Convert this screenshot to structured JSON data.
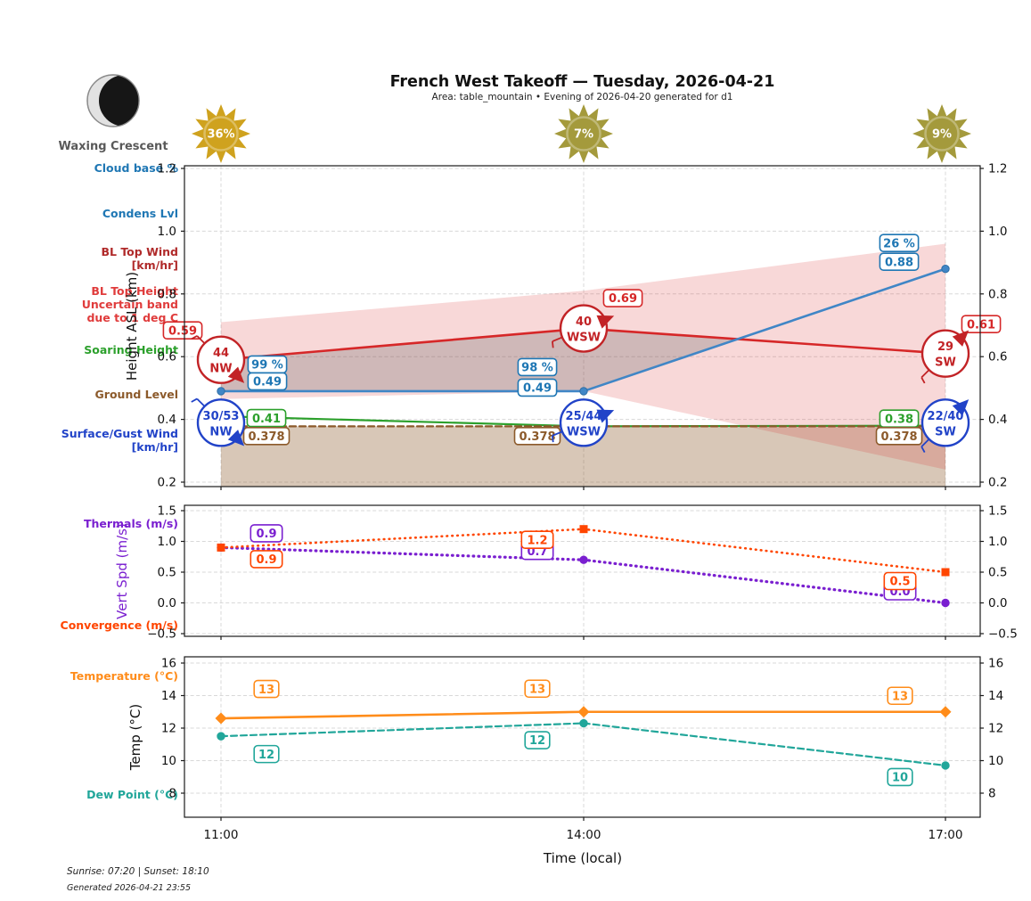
{
  "header": {
    "title": "French West Takeoff — Tuesday, 2026-04-21",
    "subtitle": "Area: table_mountain • Evening of 2026-04-20 generated for d1"
  },
  "moon": {
    "label": "Waxing Crescent"
  },
  "suns": [
    {
      "time": "11:00",
      "percent": "36%",
      "color": "#cfa21e"
    },
    {
      "time": "14:00",
      "percent": "7%",
      "color": "#a49a3c"
    },
    {
      "time": "17:00",
      "percent": "9%",
      "color": "#a49a3c"
    }
  ],
  "left_labels": [
    {
      "text": "Cloud base %",
      "color": "#1f77b4"
    },
    {
      "text": "Condens Lvl",
      "color": "#1f77b4"
    },
    {
      "text": "BL Top Wind\n[km/hr]",
      "color": "#b02a2a"
    },
    {
      "text": "BL Top Height\nUncertain band\ndue to 1 deg C",
      "color": "#e03c3c"
    },
    {
      "text": "Soaring Height",
      "color": "#2ca02c"
    },
    {
      "text": "Ground Level",
      "color": "#8c5a2b"
    },
    {
      "text": "Surface/Gust Wind\n[km/hr]",
      "color": "#2143c8"
    },
    {
      "text": "Thermals (m/s)",
      "color": "#7a1fd0"
    },
    {
      "text": "Convergence (m/s)",
      "color": "#ff4500"
    },
    {
      "text": "Temperature (°C)",
      "color": "#ff8c1a"
    },
    {
      "text": "Dew Point (°C)",
      "color": "#21a69a"
    }
  ],
  "axes": {
    "x_label": "Time (local)",
    "x_ticks": [
      "11:00",
      "14:00",
      "17:00"
    ],
    "chart1_ylabel": "Height ASL (km)",
    "chart1_yticks": [
      {
        "v": 1.2,
        "t": "1.2"
      },
      {
        "v": 1.0,
        "t": "1.0"
      },
      {
        "v": 0.8,
        "t": "0.8"
      },
      {
        "v": 0.6,
        "t": "0.6"
      },
      {
        "v": 0.4,
        "t": "0.4"
      },
      {
        "v": 0.2,
        "t": "0.2"
      }
    ],
    "chart2_ylabel": "Vert Spd (m/s)",
    "chart2_ylabel_color": "#7a1fd0",
    "chart2_yticks": [
      {
        "v": 1.5,
        "t": "1.5"
      },
      {
        "v": 1.0,
        "t": "1.0"
      },
      {
        "v": 0.5,
        "t": "0.5"
      },
      {
        "v": 0.0,
        "t": "0.0"
      },
      {
        "v": -0.5,
        "t": "−0.5"
      }
    ],
    "chart3_ylabel": "Temp (°C)",
    "chart3_yticks": [
      {
        "v": 16,
        "t": "16"
      },
      {
        "v": 14,
        "t": "14"
      },
      {
        "v": 12,
        "t": "12"
      },
      {
        "v": 10,
        "t": "10"
      },
      {
        "v": 8,
        "t": "8"
      }
    ]
  },
  "footer": {
    "sun_times": "Sunrise: 07:20 | Sunset: 18:10",
    "generated": "Generated 2026-04-21 23:55"
  },
  "chart_data": [
    {
      "type": "line",
      "ylabel": "Height ASL (km)",
      "ylim": [
        0.2,
        1.2
      ],
      "x": [
        "11:00",
        "14:00",
        "17:00"
      ],
      "series": [
        {
          "name": "BL Top Height",
          "color": "#d62728",
          "style": "solid",
          "values": [
            0.59,
            0.69,
            0.61
          ],
          "labels": [
            "0.59",
            "0.69",
            "0.61"
          ]
        },
        {
          "name": "Condens Lvl",
          "color": "#4086c6",
          "style": "solid",
          "marker": "circle",
          "values": [
            0.49,
            0.49,
            0.88
          ],
          "labels": [
            "0.49",
            "0.49",
            "0.88"
          ]
        },
        {
          "name": "Cloud base %",
          "color": "#1f77b4",
          "labels": [
            "99 %",
            "98 %",
            "26 %"
          ]
        },
        {
          "name": "Soaring Height",
          "color": "#2ca02c",
          "style": "solid",
          "values": [
            0.41,
            0.378,
            0.38
          ],
          "labels": [
            "0.41",
            null,
            "0.38"
          ]
        },
        {
          "name": "Ground Level",
          "color": "#8c5a2b",
          "style": "dashed",
          "values": [
            0.378,
            0.378,
            0.378
          ],
          "labels": [
            "0.378",
            "0.378",
            "0.378"
          ]
        }
      ],
      "bands": [
        {
          "name": "BL Top Height uncertain band due to 1 deg C",
          "color": "#d62728",
          "opacity": 0.18,
          "bottom": [
            0.465,
            0.49,
            0.24
          ],
          "top": [
            0.71,
            0.81,
            0.96
          ]
        },
        {
          "name": "Cloud layer band",
          "color": "#646464",
          "opacity": 0.28,
          "between": [
            "Condens Lvl",
            "BL Top Height"
          ]
        }
      ],
      "ground_fill": {
        "color": "#8c5a2b",
        "opacity": 0.34,
        "level": 0.378
      },
      "bl_top_wind": [
        {
          "speed": "44",
          "dir": "NW"
        },
        {
          "speed": "40",
          "dir": "WSW"
        },
        {
          "speed": "29",
          "dir": "SW"
        }
      ],
      "surface_wind": [
        {
          "speed": "30/53",
          "dir": "NW"
        },
        {
          "speed": "25/44",
          "dir": "WSW"
        },
        {
          "speed": "22/40",
          "dir": "SW"
        }
      ]
    },
    {
      "type": "line",
      "ylabel": "Vert Spd (m/s)",
      "ylim": [
        -0.5,
        1.5
      ],
      "x": [
        "11:00",
        "14:00",
        "17:00"
      ],
      "series": [
        {
          "name": "Thermals (m/s)",
          "color": "#7a1fd0",
          "style": "dotted",
          "marker": "circle",
          "values": [
            0.9,
            0.7,
            0.0
          ],
          "labels": [
            "0.9",
            "0.7",
            "0.0"
          ]
        },
        {
          "name": "Convergence (m/s)",
          "color": "#ff4500",
          "style": "dotted",
          "marker": "square",
          "values": [
            0.9,
            1.2,
            0.5
          ],
          "labels": [
            "0.9",
            "1.2",
            "0.5"
          ]
        }
      ]
    },
    {
      "type": "line",
      "ylabel": "Temp (°C)",
      "ylim": [
        6.5,
        16.4
      ],
      "x": [
        "11:00",
        "14:00",
        "17:00"
      ],
      "series": [
        {
          "name": "Temperature (°C)",
          "color": "#ff8c1a",
          "style": "solid",
          "marker": "diamond",
          "values": [
            12.6,
            13.0,
            13.0
          ],
          "labels": [
            "13",
            "13",
            "13"
          ]
        },
        {
          "name": "Dew Point (°C)",
          "color": "#21a69a",
          "style": "dashed",
          "marker": "circle",
          "values": [
            11.5,
            12.3,
            9.7
          ],
          "labels": [
            "12",
            "12",
            "10"
          ]
        }
      ]
    }
  ]
}
